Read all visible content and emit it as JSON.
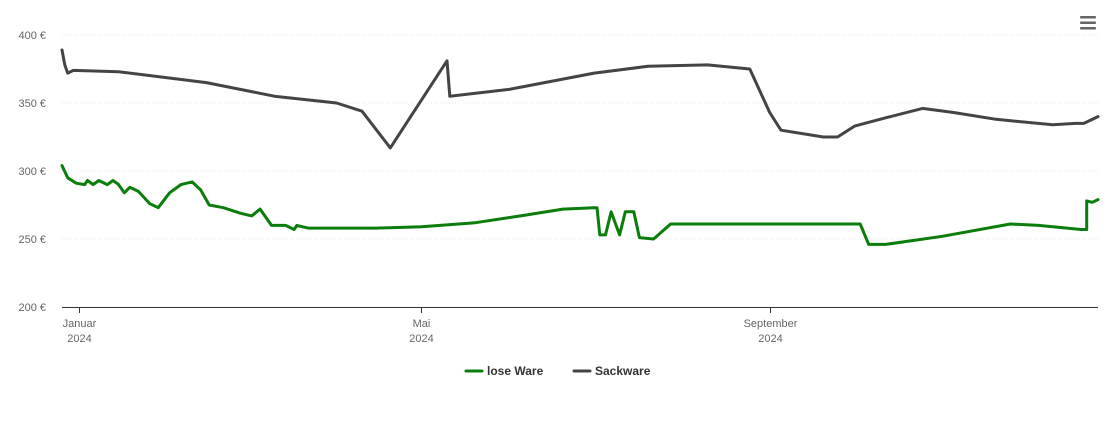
{
  "chart_data": {
    "type": "line",
    "y_unit": "€",
    "ylim": [
      200,
      400
    ],
    "yticks": [
      {
        "value": 200,
        "label": "200 €"
      },
      {
        "value": 250,
        "label": "250 €"
      },
      {
        "value": 300,
        "label": "300 €"
      },
      {
        "value": 350,
        "label": "350 €"
      },
      {
        "value": 400,
        "label": "400 €"
      }
    ],
    "xlim": [
      "2023-12-26",
      "2024-12-26"
    ],
    "xticks": [
      {
        "date": "2024-01-01",
        "month": "Januar",
        "year": "2024"
      },
      {
        "date": "2024-05-01",
        "month": "Mai",
        "year": "2024"
      },
      {
        "date": "2024-09-01",
        "month": "September",
        "year": "2024"
      }
    ],
    "grid": true,
    "legend_position": "bottom-center",
    "series": [
      {
        "name": "lose Ware",
        "color": "#0a7d0a",
        "points": [
          [
            "2023-12-26",
            304
          ],
          [
            "2023-12-28",
            295
          ],
          [
            "2023-12-31",
            291
          ],
          [
            "2024-01-03",
            290
          ],
          [
            "2024-01-04",
            293
          ],
          [
            "2024-01-06",
            290
          ],
          [
            "2024-01-08",
            293
          ],
          [
            "2024-01-11",
            290
          ],
          [
            "2024-01-13",
            293
          ],
          [
            "2024-01-15",
            290
          ],
          [
            "2024-01-17",
            284
          ],
          [
            "2024-01-19",
            288
          ],
          [
            "2024-01-22",
            285
          ],
          [
            "2024-01-26",
            276
          ],
          [
            "2024-01-29",
            273
          ],
          [
            "2024-02-02",
            284
          ],
          [
            "2024-02-06",
            290
          ],
          [
            "2024-02-10",
            292
          ],
          [
            "2024-02-13",
            286
          ],
          [
            "2024-02-16",
            275
          ],
          [
            "2024-02-21",
            273
          ],
          [
            "2024-02-27",
            269
          ],
          [
            "2024-03-02",
            267
          ],
          [
            "2024-03-05",
            272
          ],
          [
            "2024-03-09",
            260
          ],
          [
            "2024-03-14",
            260
          ],
          [
            "2024-03-17",
            257
          ],
          [
            "2024-03-18",
            260
          ],
          [
            "2024-03-20",
            259
          ],
          [
            "2024-03-22",
            258
          ],
          [
            "2024-04-15",
            258
          ],
          [
            "2024-05-01",
            259
          ],
          [
            "2024-05-20",
            262
          ],
          [
            "2024-06-05",
            267
          ],
          [
            "2024-06-20",
            272
          ],
          [
            "2024-07-01",
            273
          ],
          [
            "2024-07-02",
            273
          ],
          [
            "2024-07-03",
            253
          ],
          [
            "2024-07-05",
            253
          ],
          [
            "2024-07-07",
            270
          ],
          [
            "2024-07-10",
            253
          ],
          [
            "2024-07-12",
            270
          ],
          [
            "2024-07-15",
            270
          ],
          [
            "2024-07-17",
            251
          ],
          [
            "2024-07-22",
            250
          ],
          [
            "2024-07-28",
            261
          ],
          [
            "2024-08-05",
            261
          ],
          [
            "2024-10-01",
            261
          ],
          [
            "2024-10-03",
            261
          ],
          [
            "2024-10-06",
            246
          ],
          [
            "2024-10-12",
            246
          ],
          [
            "2024-11-01",
            252
          ],
          [
            "2024-11-25",
            261
          ],
          [
            "2024-12-05",
            260
          ],
          [
            "2024-12-20",
            257
          ],
          [
            "2024-12-22",
            257
          ],
          [
            "2024-12-22",
            278
          ],
          [
            "2024-12-24",
            277
          ],
          [
            "2024-12-26",
            279
          ]
        ]
      },
      {
        "name": "Sackware",
        "color": "#444444",
        "points": [
          [
            "2023-12-26",
            389
          ],
          [
            "2023-12-27",
            378
          ],
          [
            "2023-12-28",
            372
          ],
          [
            "2023-12-30",
            374
          ],
          [
            "2024-01-15",
            373
          ],
          [
            "2024-02-15",
            365
          ],
          [
            "2024-03-10",
            355
          ],
          [
            "2024-04-01",
            350
          ],
          [
            "2024-04-10",
            344
          ],
          [
            "2024-04-20",
            317
          ],
          [
            "2024-05-10",
            381
          ],
          [
            "2024-05-11",
            355
          ],
          [
            "2024-06-01",
            360
          ],
          [
            "2024-07-01",
            372
          ],
          [
            "2024-07-20",
            377
          ],
          [
            "2024-08-10",
            378
          ],
          [
            "2024-08-25",
            375
          ],
          [
            "2024-09-01",
            343
          ],
          [
            "2024-09-05",
            330
          ],
          [
            "2024-09-20",
            325
          ],
          [
            "2024-09-25",
            325
          ],
          [
            "2024-10-01",
            333
          ],
          [
            "2024-10-10",
            338
          ],
          [
            "2024-10-25",
            346
          ],
          [
            "2024-11-05",
            343
          ],
          [
            "2024-11-20",
            338
          ],
          [
            "2024-12-10",
            334
          ],
          [
            "2024-12-18",
            335
          ],
          [
            "2024-12-21",
            335
          ],
          [
            "2024-12-26",
            340
          ]
        ]
      }
    ]
  }
}
